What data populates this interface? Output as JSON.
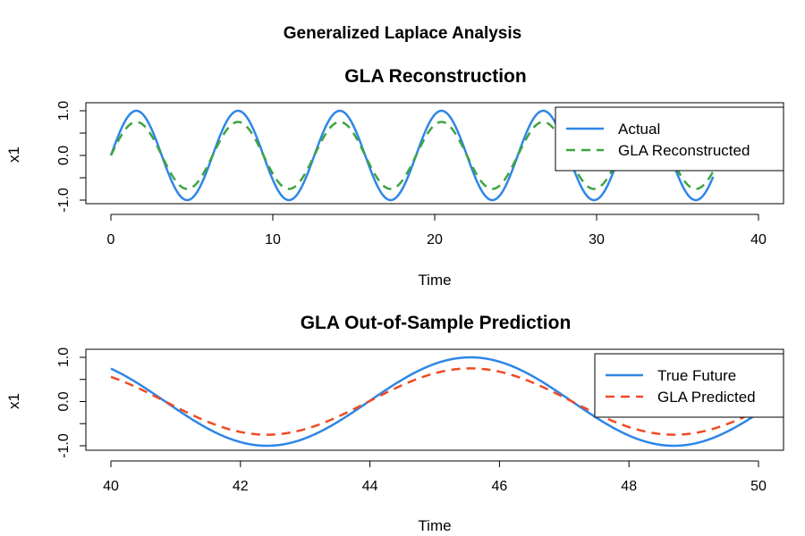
{
  "page": {
    "title": "Generalized Laplace Analysis"
  },
  "chart_data": [
    {
      "type": "line",
      "title": "GLA Reconstruction",
      "xlabel": "Time",
      "ylabel": "x1",
      "xlim": [
        0,
        40
      ],
      "ylim": [
        -1,
        1
      ],
      "x_ticks": [
        0,
        10,
        20,
        30,
        40
      ],
      "y_ticks": [
        -1,
        -0.5,
        0,
        0.5,
        1
      ],
      "y_tick_labels": [
        "-1.0",
        "",
        "0.0",
        "",
        "1.0"
      ],
      "x_range": [
        0,
        37.2
      ],
      "legend": {
        "position": "top-right",
        "entries": [
          "Actual",
          "GLA Reconstructed"
        ]
      },
      "series": [
        {
          "name": "Actual",
          "color": "#2E86E6",
          "style": "solid",
          "amplitude": 1.0,
          "period": 6.283,
          "phase": 0
        },
        {
          "name": "GLA Reconstructed",
          "color": "#3FA33F",
          "style": "dashed",
          "amplitude": 0.75,
          "period": 6.283,
          "phase": 0
        }
      ]
    },
    {
      "type": "line",
      "title": "GLA Out-of-Sample Prediction",
      "xlabel": "Time",
      "ylabel": "x1",
      "xlim": [
        40,
        50
      ],
      "ylim": [
        -1,
        1
      ],
      "x_ticks": [
        40,
        42,
        44,
        46,
        48,
        50
      ],
      "y_ticks": [
        -1,
        -0.5,
        0,
        0.5,
        1
      ],
      "y_tick_labels": [
        "-1.0",
        "",
        "0.0",
        "",
        "1.0"
      ],
      "x_range": [
        40,
        50
      ],
      "legend": {
        "position": "top-right",
        "entries": [
          "True Future",
          "GLA Predicted"
        ]
      },
      "series": [
        {
          "name": "True Future",
          "color": "#2E86E6",
          "style": "solid",
          "amplitude": 1.0,
          "period": 6.283,
          "phase": 0
        },
        {
          "name": "GLA Predicted",
          "color": "#F04A24",
          "style": "dashed",
          "amplitude": 0.75,
          "period": 6.283,
          "phase": 0
        }
      ]
    }
  ]
}
